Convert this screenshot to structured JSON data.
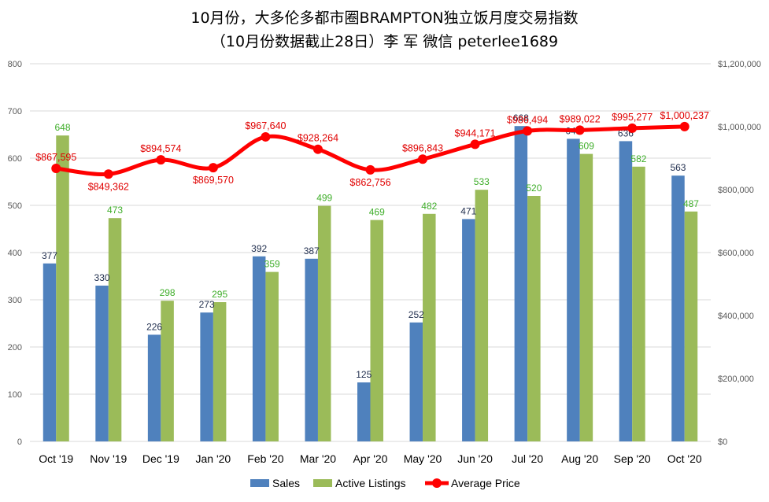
{
  "chart_data": {
    "type": "bar",
    "title": "10月份，大多伦多都市圈BRAMPTON独立饭月度交易指数",
    "subtitle": "（10月份数据截止28日）李 军  微信  peterlee1689",
    "categories": [
      "Oct '19",
      "Nov '19",
      "Dec '19",
      "Jan '20",
      "Feb '20",
      "Mar '20",
      "Apr '20",
      "May '20",
      "Jun '20",
      "Jul '20",
      "Aug '20",
      "Sep '20",
      "Oct '20"
    ],
    "series": [
      {
        "name": "Sales",
        "type": "bar",
        "axis": "left",
        "color": "#4f81bd",
        "values": [
          377,
          330,
          226,
          273,
          392,
          387,
          125,
          252,
          471,
          668,
          641,
          636,
          563
        ]
      },
      {
        "name": "Active Listings",
        "type": "bar",
        "axis": "left",
        "color": "#9bbb59",
        "values": [
          648,
          473,
          298,
          295,
          359,
          499,
          469,
          482,
          533,
          520,
          609,
          582,
          487
        ]
      },
      {
        "name": "Average Price",
        "type": "line",
        "axis": "right",
        "color": "#ff0000",
        "values": [
          867595,
          849362,
          894574,
          869570,
          967640,
          928264,
          862756,
          896843,
          944171,
          986494,
          989022,
          995277,
          1000237
        ],
        "labels": [
          "$867,595",
          "$849,362",
          "$894,574",
          "$869,570",
          "$967,640",
          "$928,264",
          "$862,756",
          "$896,843",
          "$944,171",
          "$986,494",
          "$989,022",
          "$995,277",
          "$1,000,237"
        ]
      }
    ],
    "y_left": {
      "min": 0,
      "max": 800,
      "ticks": [
        "0",
        "100",
        "200",
        "300",
        "400",
        "500",
        "600",
        "700",
        "800"
      ]
    },
    "y_right": {
      "min": 0,
      "max": 1200000,
      "ticks": [
        "$0",
        "$200,000",
        "$400,000",
        "$600,000",
        "$800,000",
        "$1,000,000",
        "$1,200,000"
      ]
    },
    "grid": true,
    "legend_position": "bottom"
  }
}
